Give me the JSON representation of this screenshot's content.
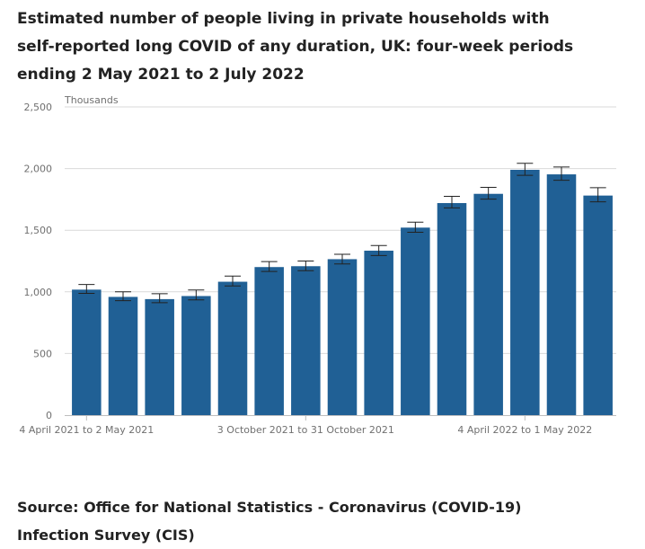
{
  "title": "Estimated number of people living in private households with self-reported long COVID of any duration, UK: four-week periods ending 2 May 2021 to 2 July 2022",
  "source": "Source: Office for National Statistics - Coronavirus (COVID-19) Infection Survey (CIS)",
  "chart_data": {
    "type": "bar",
    "title": "Estimated number of people living in private households with self-reported long COVID of any duration, UK: four-week periods ending 2 May 2021 to 2 July 2022",
    "ylabel": "Thousands",
    "xlabel": "",
    "ylim": [
      0,
      2500
    ],
    "yticks": [
      "0",
      "500",
      "1,000",
      "1,500",
      "2,000",
      "2,500"
    ],
    "ytick_values": [
      0,
      500,
      1000,
      1500,
      2000,
      2500
    ],
    "grid": true,
    "x_tick_labels": [
      {
        "index": 0,
        "label": "4 April 2021 to 2 May 2021"
      },
      {
        "index": 6,
        "label": "3 October 2021 to 31 October 2021"
      },
      {
        "index": 12,
        "label": "4 April 2022 to 1 May 2022"
      }
    ],
    "bar_color": "#206095",
    "values": [
      1018,
      959,
      941,
      966,
      1082,
      1201,
      1208,
      1265,
      1334,
      1521,
      1720,
      1795,
      1990,
      1953,
      1781
    ],
    "error_lower": [
      988,
      928,
      912,
      935,
      1048,
      1165,
      1172,
      1226,
      1295,
      1483,
      1681,
      1752,
      1945,
      1905,
      1730
    ],
    "error_upper": [
      1060,
      1000,
      985,
      1015,
      1128,
      1245,
      1250,
      1305,
      1376,
      1565,
      1775,
      1848,
      2043,
      2013,
      1845
    ]
  }
}
